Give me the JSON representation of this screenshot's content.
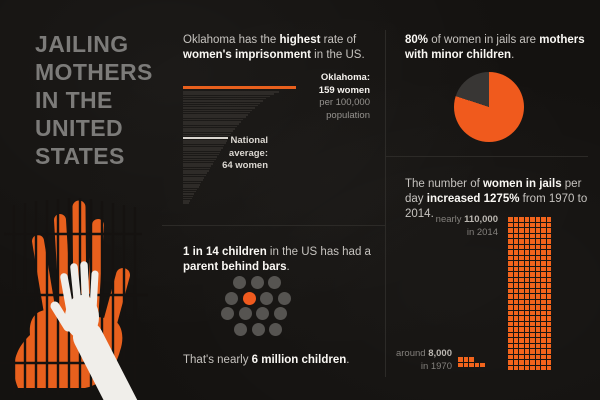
{
  "colors": {
    "background": "#141210",
    "accent_orange": "#e8601d",
    "pie_orange": "#f05a1d",
    "pie_remainder": "#383634",
    "body_text": "#c6c3bf",
    "bold_text": "#faf8f4",
    "title_gray": "#7c7b79",
    "bar_gray": "#2e2b28",
    "reference_bar_white": "#d9d5cf",
    "dot_gray": "#565451"
  },
  "title": {
    "lines": [
      "JAILING",
      "MOTHERS",
      "IN THE",
      "UNITED",
      "STATES"
    ]
  },
  "panels": {
    "oklahoma": {
      "heading": [
        {
          "t": "Oklahoma has the "
        },
        {
          "t": "highest",
          "b": 1
        },
        {
          "t": " rate of "
        },
        {
          "t": "women's imprisonment",
          "b": 1
        },
        {
          "t": " in the US."
        }
      ],
      "bar_label": {
        "line1": "Oklahoma:",
        "line2": "159 women",
        "line3": "per 100,000",
        "line4": "population"
      },
      "avg_label": {
        "line1": "National",
        "line2": "average:",
        "line3": "64 women"
      }
    },
    "mothers": {
      "heading": [
        {
          "t": "80%",
          "b": 1
        },
        {
          "t": " of  women in jails are "
        },
        {
          "t": "mothers with minor children",
          "b": 1
        },
        {
          "t": "."
        }
      ]
    },
    "children": {
      "heading": [
        {
          "t": "1 in 14 children",
          "b": 1
        },
        {
          "t": " in the US has had a "
        },
        {
          "t": "parent behind bars",
          "b": 1
        },
        {
          "t": "."
        }
      ],
      "footer": [
        {
          "t": "That's nearly "
        },
        {
          "t": "6 million children",
          "b": 1
        },
        {
          "t": "."
        }
      ]
    },
    "jails_growth": {
      "heading": [
        {
          "t": "The number of "
        },
        {
          "t": "women in jails",
          "b": 1
        },
        {
          "t": " per day "
        },
        {
          "t": "increased 1275%",
          "b": 1
        },
        {
          "t": " from 1970 to 2014."
        }
      ],
      "label_2014_l1": [
        {
          "t": "nearly "
        },
        {
          "t": "110,000",
          "b": 1
        }
      ],
      "label_2014_l2": [
        {
          "t": "in 2014"
        }
      ],
      "label_1970_l1": [
        {
          "t": "around "
        },
        {
          "t": "8,000",
          "b": 1
        }
      ],
      "label_1970_l2": [
        {
          "t": "in 1970"
        }
      ]
    }
  },
  "chart_data": [
    {
      "id": "state_bars",
      "type": "bar",
      "orientation": "horizontal",
      "title": "Oklahoma has the highest rate of women's imprisonment in the US.",
      "unit": "women imprisoned per 100,000 population",
      "max_value": 159,
      "highlight": {
        "label": "Oklahoma",
        "value": 159,
        "color": "#e8601d"
      },
      "reference": {
        "label": "National average",
        "value": 64,
        "color": "#d9d5cf"
      },
      "values": [
        159,
        135,
        128,
        122,
        117,
        113,
        109,
        105,
        101,
        97,
        94,
        91,
        88,
        85,
        82,
        79,
        76,
        73,
        71,
        68,
        66,
        64,
        62,
        60,
        58,
        56,
        54,
        52,
        50,
        48,
        46,
        44,
        42,
        40,
        38,
        36,
        34,
        32,
        30,
        28,
        26,
        24,
        22,
        20,
        18,
        16,
        14,
        12,
        10,
        8
      ],
      "note": "values below Oklahoma estimated from bar lengths; 64 is the national-average reference bar"
    },
    {
      "id": "mothers_pie",
      "type": "pie",
      "values": [
        80,
        20
      ],
      "labels": [
        "mothers with minor children",
        "other women in jails"
      ],
      "colors": [
        "#f05a1d",
        "#383634"
      ]
    },
    {
      "id": "children_dots",
      "type": "icon-array",
      "total": 14,
      "highlighted": 1,
      "rows": [
        3,
        4,
        4,
        3
      ],
      "highlight_pos": [
        1,
        1
      ],
      "caption": "1 in 14 children"
    },
    {
      "id": "jail_waffle",
      "type": "waffle",
      "increase_pct": 1275,
      "series": [
        {
          "name": "1970",
          "value": 8000,
          "label": "around 8,000 in 1970",
          "rows": [
            3,
            5
          ]
        },
        {
          "name": "2014",
          "value": 110000,
          "label": "nearly 110,000 in 2014",
          "cols": 8,
          "rows_count": 28
        }
      ]
    }
  ]
}
